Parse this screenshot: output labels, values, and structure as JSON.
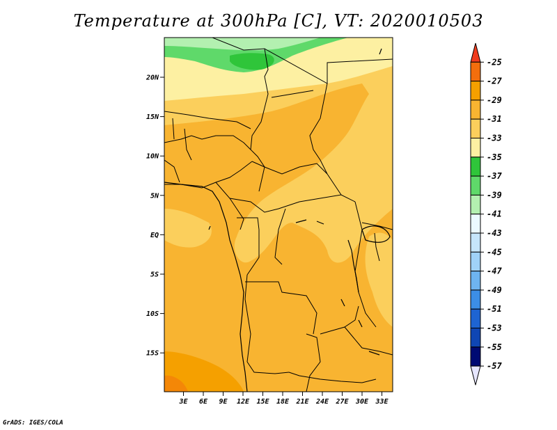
{
  "title": "Temperature at 300hPa [C], VT: 2020010503",
  "footer": "GrADS: IGES/COLA",
  "map": {
    "lat_labels": [
      "20N",
      "15N",
      "10N",
      "5N",
      "EQ",
      "5S",
      "10S",
      "15S"
    ],
    "lon_labels": [
      "3E",
      "6E",
      "9E",
      "12E",
      "15E",
      "18E",
      "21E",
      "24E",
      "27E",
      "30E",
      "33E"
    ]
  },
  "colorbar": {
    "labels": [
      "-25",
      "-27",
      "-29",
      "-31",
      "-33",
      "-35",
      "-37",
      "-39",
      "-41",
      "-43",
      "-45",
      "-47",
      "-49",
      "-51",
      "-53",
      "-55",
      "-57"
    ],
    "colors": [
      "#f03c1e",
      "#f36e0d",
      "#f5a000",
      "#f8b431",
      "#fbcf5c",
      "#fdf0a2",
      "#2fc53a",
      "#5fd96a",
      "#b3f0b0",
      "#ecfaff",
      "#c6e6fb",
      "#a0d2f8",
      "#6eb4f0",
      "#3c8ee6",
      "#1e64d2",
      "#0f46b4",
      "#000a73",
      "#e6e6ff"
    ]
  }
}
